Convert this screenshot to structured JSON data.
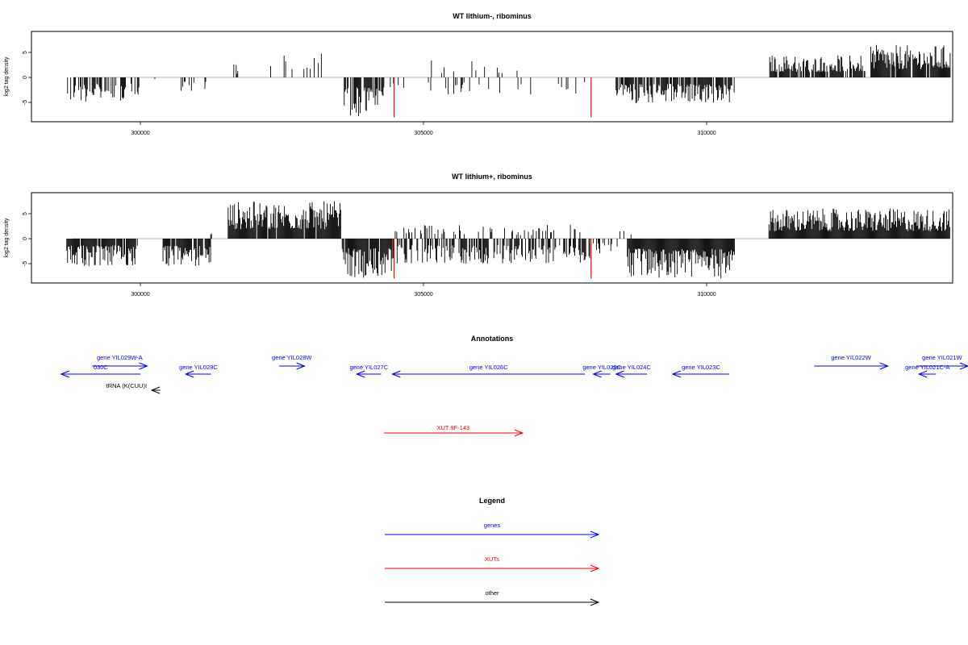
{
  "chart_data": [
    {
      "type": "bar",
      "title": "WT lithium-, ribominus",
      "xlabel": "",
      "ylabel": "log2 tag density",
      "xlim": [
        298600,
        314300
      ],
      "ylim": [
        -8,
        8
      ],
      "xticks": [
        300000,
        305000,
        310000
      ],
      "yticks": [
        -5,
        0,
        5
      ],
      "segments": [
        {
          "from": 298700,
          "to": 300000,
          "sign": -1,
          "amp": 5.0,
          "density": 0.55
        },
        {
          "from": 300200,
          "to": 300300,
          "sign": -1,
          "amp": 0.6,
          "density": 0.2
        },
        {
          "from": 300650,
          "to": 301300,
          "sign": -1,
          "amp": 3.0,
          "density": 0.25
        },
        {
          "from": 301650,
          "to": 301750,
          "sign": 1,
          "amp": 2.8,
          "density": 0.5
        },
        {
          "from": 302300,
          "to": 303400,
          "sign": 1,
          "amp": 4.8,
          "density": 0.15
        },
        {
          "from": 303600,
          "to": 304300,
          "sign": -1,
          "amp": 7.8,
          "density": 0.75
        },
        {
          "from": 304400,
          "to": 307900,
          "sign": -1,
          "amp": 3.5,
          "density": 0.12
        },
        {
          "from": 305000,
          "to": 307300,
          "sign": 1,
          "amp": 3.5,
          "density": 0.04
        },
        {
          "from": 308400,
          "to": 310500,
          "sign": -1,
          "amp": 5.2,
          "density": 0.8
        },
        {
          "from": 311100,
          "to": 312800,
          "sign": 1,
          "amp": 4.5,
          "density": 0.85
        },
        {
          "from": 312900,
          "to": 314300,
          "sign": 1,
          "amp": 6.5,
          "density": 0.9
        }
      ],
      "highlight_x": [
        304480,
        307960
      ],
      "highlight_depth": -8,
      "highlight_color": "#ff0000"
    },
    {
      "type": "bar",
      "title": "WT lithium+, ribominus",
      "xlabel": "",
      "ylabel": "log2 tag density",
      "xlim": [
        298600,
        314300
      ],
      "ylim": [
        -8,
        8
      ],
      "xticks": [
        300000,
        305000,
        310000
      ],
      "yticks": [
        -5,
        0,
        5
      ],
      "segments": [
        {
          "from": 298700,
          "to": 299950,
          "sign": -1,
          "amp": 5.5,
          "density": 0.9
        },
        {
          "from": 300400,
          "to": 301250,
          "sign": -1,
          "amp": 5.8,
          "density": 0.9
        },
        {
          "from": 301200,
          "to": 301300,
          "sign": 1,
          "amp": 2.5,
          "density": 0.4
        },
        {
          "from": 301550,
          "to": 303550,
          "sign": 1,
          "amp": 7.5,
          "density": 0.95
        },
        {
          "from": 303550,
          "to": 304450,
          "sign": -1,
          "amp": 7.8,
          "density": 0.95
        },
        {
          "from": 304450,
          "to": 307950,
          "sign": -1,
          "amp": 5.0,
          "density": 0.6
        },
        {
          "from": 304500,
          "to": 307800,
          "sign": 1,
          "amp": 2.8,
          "density": 0.2
        },
        {
          "from": 308000,
          "to": 308600,
          "sign": -1,
          "amp": 3.0,
          "density": 0.3
        },
        {
          "from": 308300,
          "to": 308700,
          "sign": 1,
          "amp": 3.0,
          "density": 0.2
        },
        {
          "from": 308600,
          "to": 310500,
          "sign": -1,
          "amp": 8.0,
          "density": 1.0
        },
        {
          "from": 311100,
          "to": 314300,
          "sign": 1,
          "amp": 6.0,
          "density": 1.0
        }
      ],
      "highlight_x": [
        304480,
        307960
      ],
      "highlight_depth": -8,
      "highlight_color": "#ff0000"
    }
  ],
  "annotations": {
    "title": "Annotations",
    "features": [
      {
        "label": "030C",
        "start": 300000,
        "end": 298600,
        "row": 1,
        "color": "#0000ff"
      },
      {
        "label": "gene YIL029W-A",
        "start": 299150,
        "end": 300120,
        "row": 0,
        "color": "#0000ff"
      },
      {
        "label": "gene YIL029C",
        "start": 301250,
        "end": 300800,
        "row": 1,
        "color": "#0000ff"
      },
      {
        "label": "gene YIL028W",
        "start": 302450,
        "end": 302900,
        "row": 0,
        "color": "#0000ff"
      },
      {
        "label": "gene YIL027C",
        "start": 304250,
        "end": 303820,
        "row": 1,
        "color": "#0000ff"
      },
      {
        "label": "gene YIL026C",
        "start": 307850,
        "end": 304450,
        "row": 1,
        "color": "#0000ff"
      },
      {
        "label": "gene YIL025C",
        "start": 308300,
        "end": 308000,
        "row": 1,
        "color": "#0000ff"
      },
      {
        "label": "gene YIL024C",
        "start": 308950,
        "end": 308400,
        "row": 1,
        "color": "#0000ff"
      },
      {
        "label": "gene YIL023C",
        "start": 310400,
        "end": 309400,
        "row": 1,
        "color": "#0000ff"
      },
      {
        "label": "gene YIL022W",
        "start": 311900,
        "end": 313200,
        "row": 0,
        "color": "#0000ff"
      },
      {
        "label": "gene YIL021W",
        "start": 313700,
        "end": 314650,
        "row": 0,
        "color": "#0000ff"
      },
      {
        "label": "gene YIL021C-A",
        "start": 314050,
        "end": 313750,
        "row": 1,
        "color": "#0000ff"
      },
      {
        "label": "tRNA (K(CUU)I",
        "start": 300350,
        "end": 300200,
        "row": 2,
        "color": "#000000"
      },
      {
        "label": "XUT 9F-143",
        "start": 304300,
        "end": 306750,
        "row": 3,
        "color": "#ff0000"
      }
    ]
  },
  "legend": {
    "title": "Legend",
    "items": [
      {
        "label": "genes",
        "color": "#0000ff"
      },
      {
        "label": "XUTs",
        "color": "#ff0000"
      },
      {
        "label": "other",
        "color": "#000000"
      }
    ]
  }
}
